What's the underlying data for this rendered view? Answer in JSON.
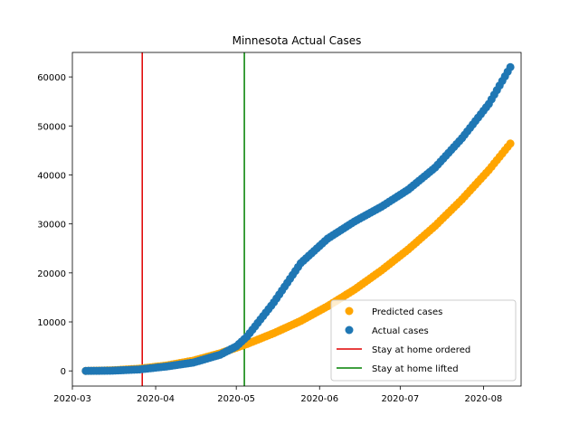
{
  "chart_data": {
    "type": "scatter",
    "title": "Minnesota Actual Cases",
    "xlabel": "",
    "ylabel": "",
    "x_ticks": [
      "2020-03",
      "2020-04",
      "2020-05",
      "2020-06",
      "2020-07",
      "2020-08"
    ],
    "y_ticks": [
      "0",
      "10000",
      "20000",
      "30000",
      "40000",
      "50000",
      "60000"
    ],
    "xlim": [
      "2020-03-01",
      "2020-08-15"
    ],
    "ylim": [
      -3100,
      65000
    ],
    "grid": false,
    "legend_position": "lower-right",
    "vertical_lines": [
      {
        "name": "Stay at home ordered",
        "x": "2020-03-27",
        "color": "#e00000"
      },
      {
        "name": "Stay at home lifted",
        "x": "2020-05-04",
        "color": "#008000"
      }
    ],
    "series": [
      {
        "name": "Predicted cases",
        "color": "#ffa500",
        "x": [
          "2020-03-06",
          "2020-03-16",
          "2020-03-26",
          "2020-04-05",
          "2020-04-15",
          "2020-04-25",
          "2020-05-05",
          "2020-05-15",
          "2020-05-25",
          "2020-06-04",
          "2020-06-14",
          "2020-06-24",
          "2020-07-04",
          "2020-07-14",
          "2020-07-24",
          "2020-08-03",
          "2020-08-11"
        ],
        "y": [
          0,
          120,
          450,
          1100,
          2100,
          3600,
          5500,
          7700,
          10200,
          13200,
          16600,
          20500,
          24800,
          29600,
          35000,
          41000,
          46400
        ]
      },
      {
        "name": "Actual cases",
        "color": "#1f77b4",
        "x": [
          "2020-03-06",
          "2020-03-16",
          "2020-03-26",
          "2020-04-05",
          "2020-04-15",
          "2020-04-25",
          "2020-05-01",
          "2020-05-05",
          "2020-05-15",
          "2020-05-25",
          "2020-06-04",
          "2020-06-14",
          "2020-06-24",
          "2020-07-04",
          "2020-07-14",
          "2020-07-24",
          "2020-08-03",
          "2020-08-11"
        ],
        "y": [
          0,
          50,
          300,
          900,
          1700,
          3300,
          5000,
          7000,
          14000,
          22000,
          27000,
          30500,
          33500,
          37000,
          41500,
          47500,
          54500,
          62000
        ]
      }
    ]
  }
}
